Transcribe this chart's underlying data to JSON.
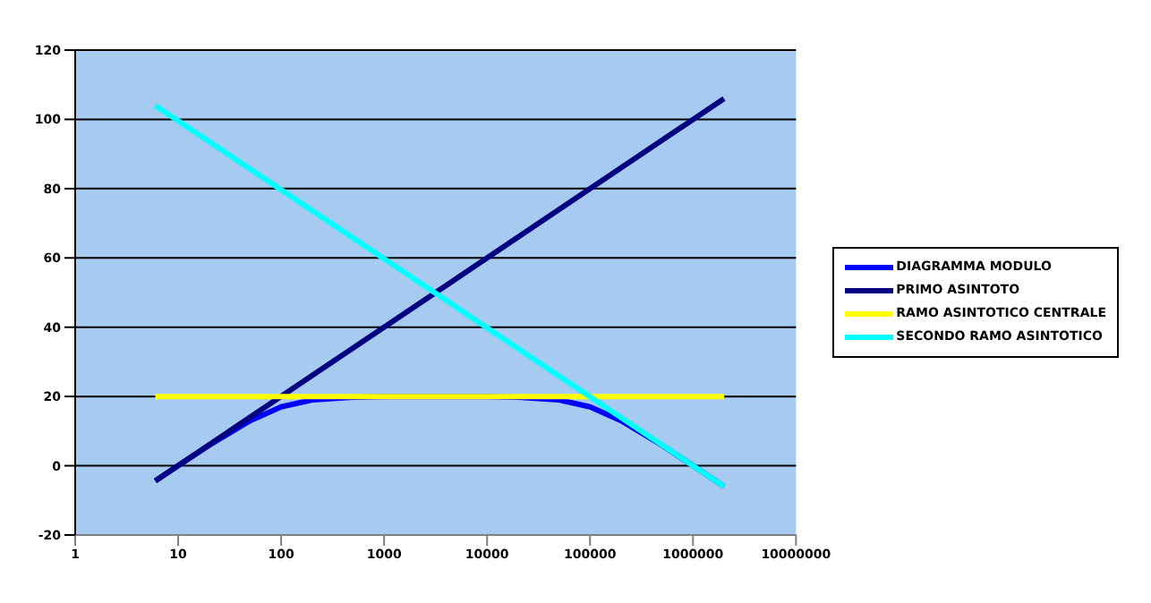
{
  "chart_data": {
    "type": "line",
    "log": "x",
    "xlim": [
      1,
      10000000
    ],
    "xticks": [
      1,
      10,
      100,
      1000,
      10000,
      100000,
      1000000,
      10000000
    ],
    "ylim": [
      -20,
      120
    ],
    "yticks": [
      -20,
      0,
      20,
      40,
      60,
      80,
      100,
      120
    ],
    "grid": "y",
    "legend": "right",
    "marker": "none",
    "line_style": "solid",
    "series": [
      {
        "name": "DIAGRAMMA MODULO",
        "color": "#0000ff",
        "x": [
          6,
          10,
          20,
          50,
          100,
          200,
          500,
          1000,
          10000,
          20000,
          50000,
          100000,
          200000,
          500000,
          1000000,
          2000000
        ],
        "values": [
          -4.4,
          0,
          5.9,
          13,
          17,
          19,
          19.8,
          20,
          20,
          19.8,
          19,
          17,
          13,
          5.9,
          0,
          -6
        ]
      },
      {
        "name": "PRIMO ASINTOTO",
        "color": "#000080",
        "x": [
          6,
          2000000
        ],
        "values": [
          -4.4,
          106
        ]
      },
      {
        "name": "RAMO ASINTOTICO CENTRALE",
        "color": "#ffff00",
        "x": [
          6,
          2000000
        ],
        "values": [
          20,
          20
        ]
      },
      {
        "name": "SECONDO RAMO ASINTOTICO",
        "color": "#00ffff",
        "x": [
          6,
          2000000
        ],
        "values": [
          104,
          -6
        ]
      }
    ]
  }
}
